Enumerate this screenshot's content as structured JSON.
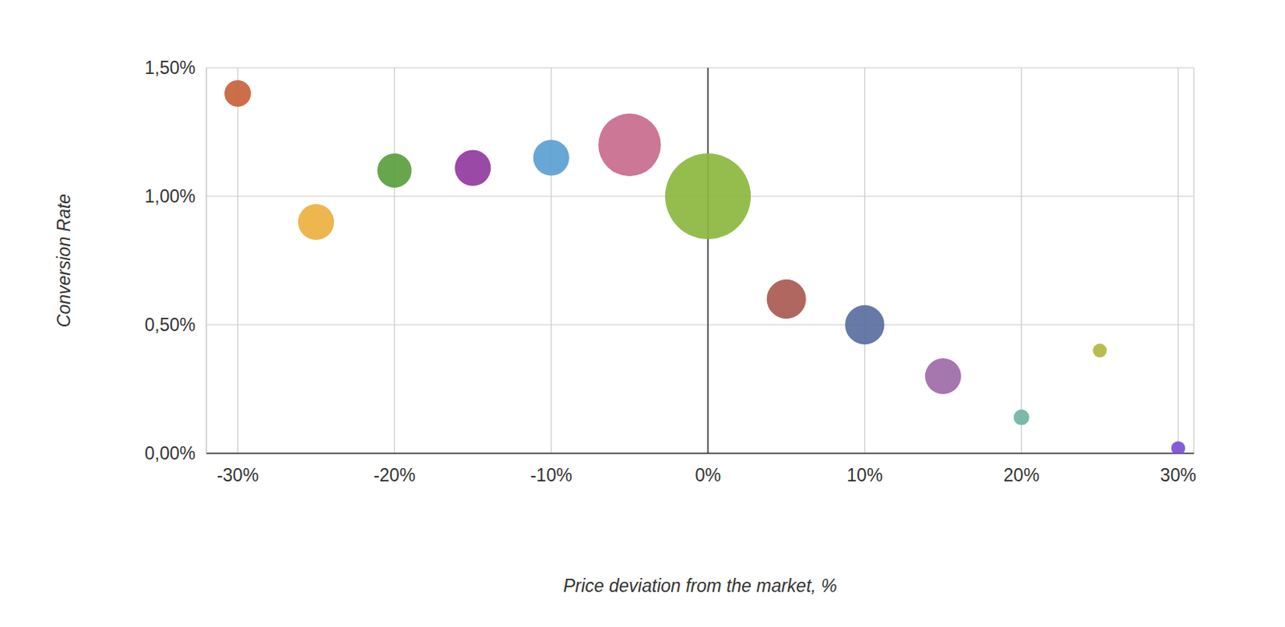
{
  "chart_data": {
    "type": "bubble",
    "x_label": "Price deviation from the market, %",
    "y_label": "Conversion Rate",
    "x": [
      -30,
      -25,
      -20,
      -15,
      -10,
      -5,
      0,
      5,
      10,
      15,
      20,
      25,
      30
    ],
    "values": [
      1.4,
      0.9,
      1.1,
      1.11,
      1.15,
      1.2,
      1.0,
      0.6,
      0.5,
      0.3,
      0.14,
      0.4,
      0.02
    ],
    "sizes": [
      2.9,
      5.3,
      4.8,
      5.3,
      5.3,
      16,
      30,
      6.3,
      6.3,
      5.3,
      1.0,
      0.8,
      0.8
    ],
    "colors": [
      "#c8623a",
      "#ebb040",
      "#5a9e3e",
      "#93399e",
      "#5aa0d2",
      "#c76b8c",
      "#8cb73e",
      "#a85a52",
      "#5a6e9e",
      "#9e6aa8",
      "#70b3a3",
      "#b3b740",
      "#7a4ed6"
    ],
    "xlim": [
      -32,
      31
    ],
    "ylim": [
      0,
      1.5
    ],
    "xticks": [
      {
        "value": -30,
        "label": "-30%"
      },
      {
        "value": -20,
        "label": "-20%"
      },
      {
        "value": -10,
        "label": "-10%"
      },
      {
        "value": 0,
        "label": "0%"
      },
      {
        "value": 10,
        "label": "10%"
      },
      {
        "value": 20,
        "label": "20%"
      },
      {
        "value": 30,
        "label": "30%"
      }
    ],
    "yticks": [
      {
        "value": 0,
        "label": "0,00%"
      },
      {
        "value": 0.5,
        "label": "0,50%"
      },
      {
        "value": 1,
        "label": "1,00%"
      },
      {
        "value": 1.5,
        "label": "1,50%"
      }
    ],
    "grid": true
  }
}
